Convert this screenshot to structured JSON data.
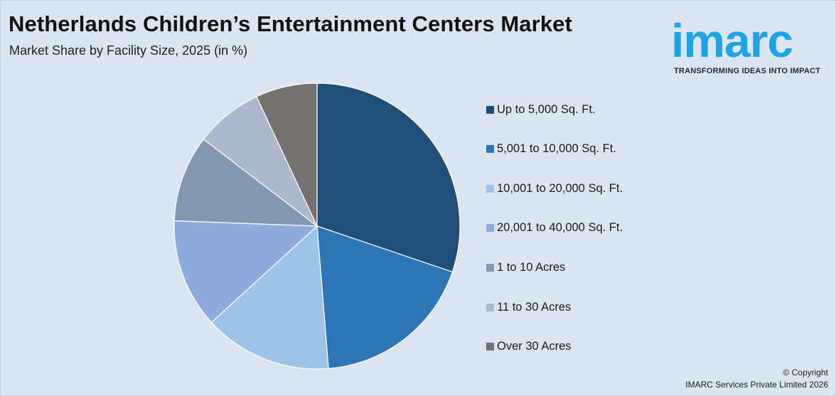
{
  "header": {
    "title": "Netherlands Children’s Entertainment Centers Market",
    "subtitle": "Market Share by Facility Size, 2025 (in %)"
  },
  "logo": {
    "wordmark": "imarc",
    "tagline": "TRANSFORMING IDEAS INTO IMPACT",
    "color": "#1ea3e6"
  },
  "footer": {
    "copyright_line1": "© Copyright",
    "copyright_line2": "IMARC Services Private Limited 2026"
  },
  "chart_data": {
    "type": "pie",
    "title": "Netherlands Children’s Entertainment Centers Market",
    "subtitle": "Market Share by Facility Size, 2025 (in %)",
    "legend_position": "right",
    "start_angle": "12 o'clock",
    "direction": "clockwise",
    "categories": [
      "Up to 5,000 Sq. Ft.",
      "5,001 to 10,000 Sq. Ft.",
      "10,001 to 20,000 Sq. Ft.",
      "20,001 to 40,000 Sq. Ft.",
      "1 to 10 Acres",
      "11 to 30 Acres",
      "Over 30 Acres"
    ],
    "values": [
      30.8,
      18.9,
      14.8,
      12.6,
      10.0,
      7.8,
      7.1
    ],
    "colors": [
      "#1f4e79",
      "#2e75b6",
      "#9dc3e6",
      "#8faadc",
      "#8497b0",
      "#adb9ca",
      "#767171"
    ]
  }
}
